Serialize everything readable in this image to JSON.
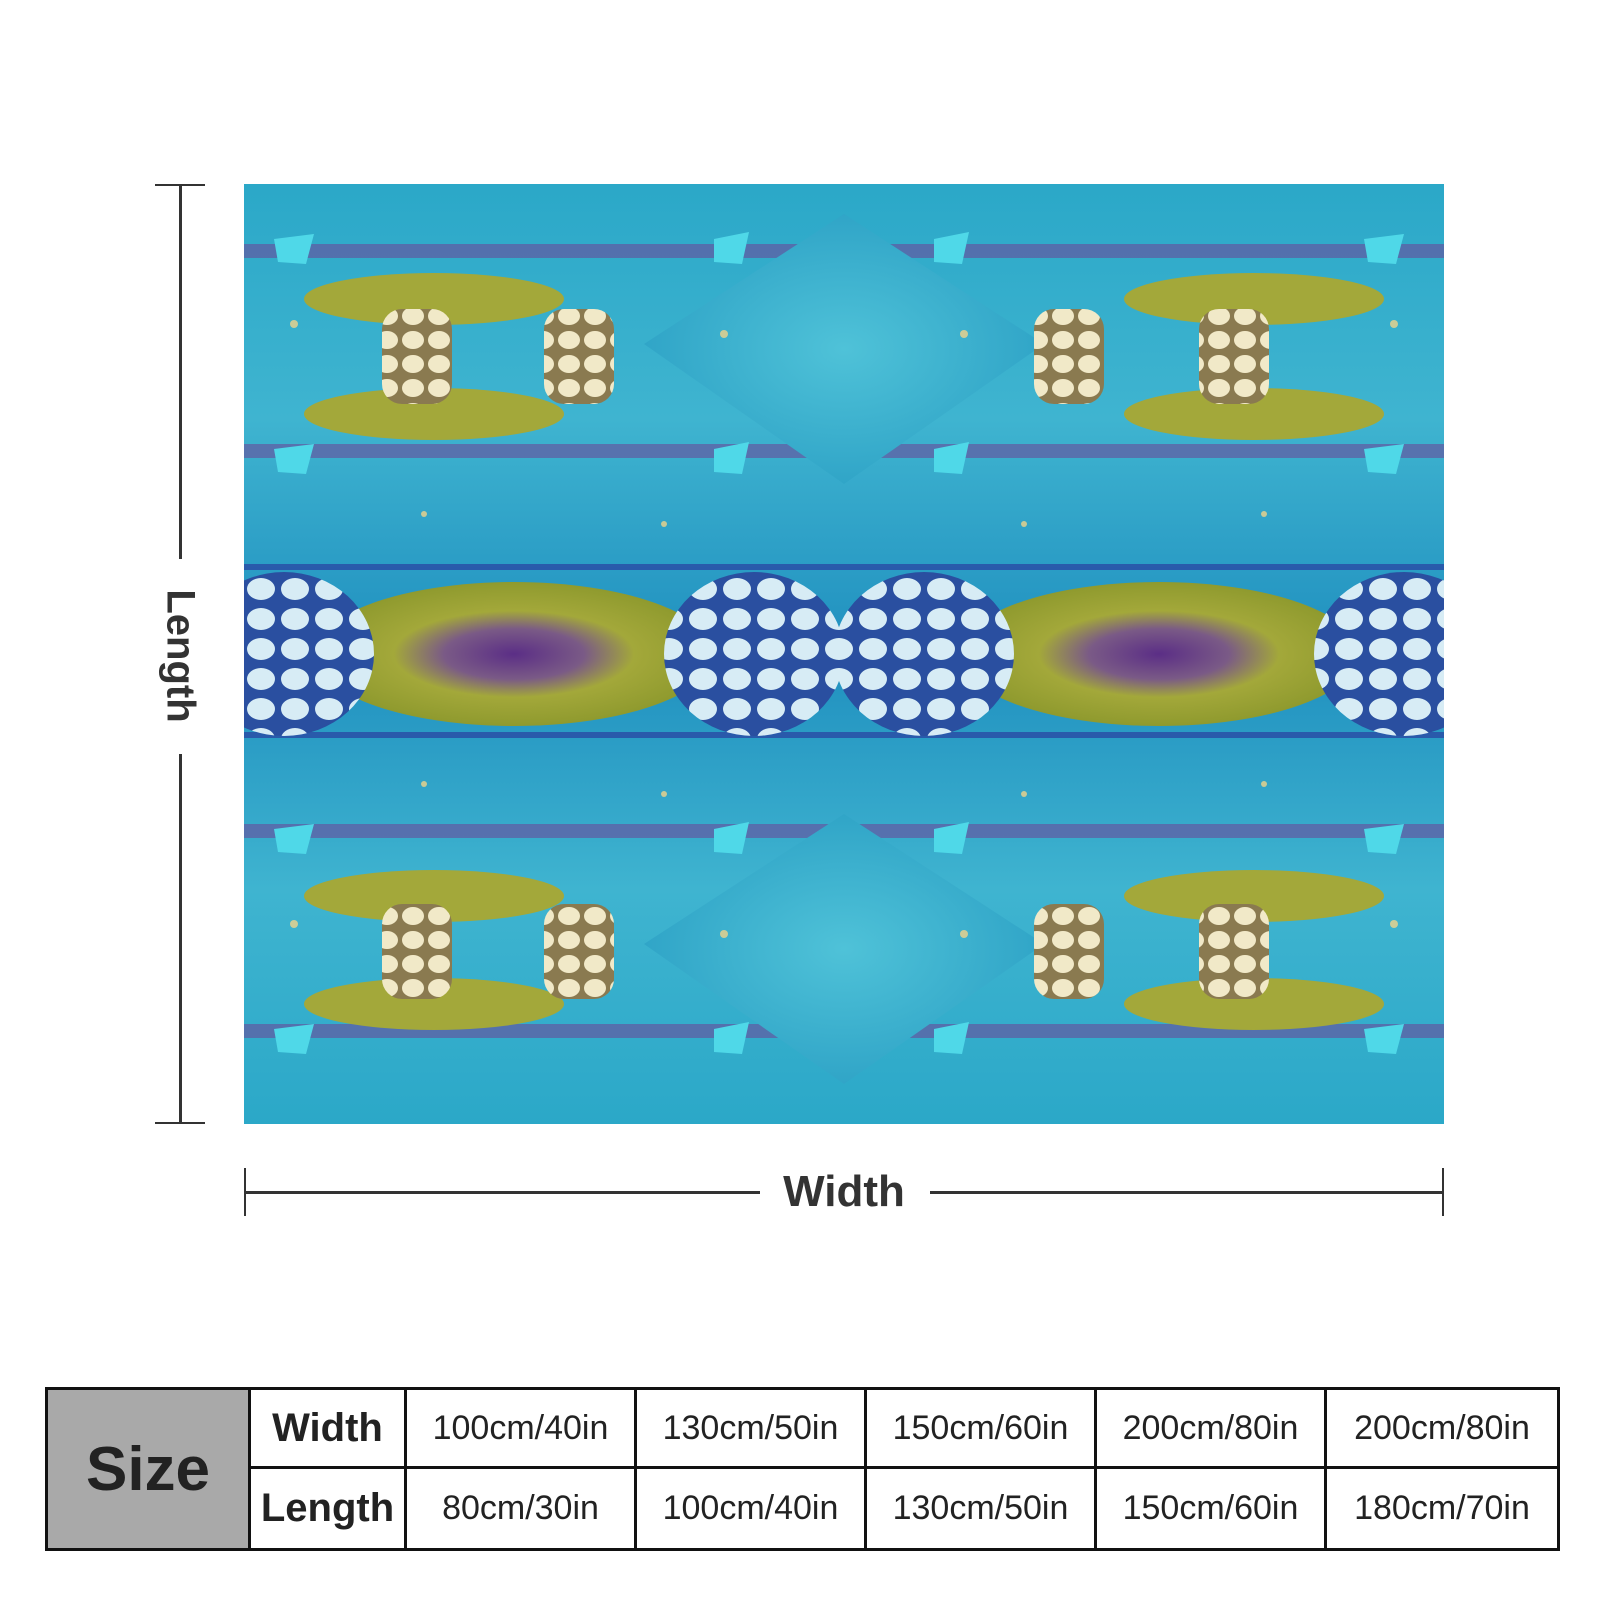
{
  "dimensions": {
    "length_label": "Length",
    "width_label": "Width"
  },
  "blanket": {
    "colors": {
      "turquoise": "#2ba8c8",
      "deep_blue": "#1b7fb0",
      "olive": "#a3a83a",
      "purple": "#5b2e86",
      "cream": "#f1e9c8",
      "pale_blue": "#d7ecf5"
    }
  },
  "size_table": {
    "title": "Size",
    "rows": [
      {
        "label": "Width",
        "values": [
          "100cm/40in",
          "130cm/50in",
          "150cm/60in",
          "200cm/80in",
          "200cm/80in"
        ]
      },
      {
        "label": "Length",
        "values": [
          "80cm/30in",
          "100cm/40in",
          "130cm/50in",
          "150cm/60in",
          "180cm/70in"
        ]
      }
    ]
  }
}
